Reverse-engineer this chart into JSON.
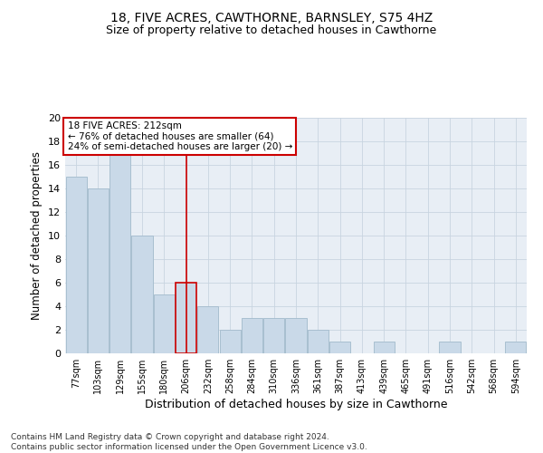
{
  "title": "18, FIVE ACRES, CAWTHORNE, BARNSLEY, S75 4HZ",
  "subtitle": "Size of property relative to detached houses in Cawthorne",
  "xlabel": "Distribution of detached houses by size in Cawthorne",
  "ylabel": "Number of detached properties",
  "footer_line1": "Contains HM Land Registry data © Crown copyright and database right 2024.",
  "footer_line2": "Contains public sector information licensed under the Open Government Licence v3.0.",
  "categories": [
    "77sqm",
    "103sqm",
    "129sqm",
    "155sqm",
    "180sqm",
    "206sqm",
    "232sqm",
    "258sqm",
    "284sqm",
    "310sqm",
    "336sqm",
    "361sqm",
    "387sqm",
    "413sqm",
    "439sqm",
    "465sqm",
    "491sqm",
    "516sqm",
    "542sqm",
    "568sqm",
    "594sqm"
  ],
  "values": [
    15,
    14,
    17,
    10,
    5,
    6,
    4,
    2,
    3,
    3,
    3,
    2,
    1,
    0,
    1,
    0,
    0,
    1,
    0,
    0,
    1
  ],
  "bar_color": "#c9d9e8",
  "bar_edge_color": "#a8bfd0",
  "highlight_bar_index": 5,
  "highlight_bar_edge_color": "#cc0000",
  "vline_color": "#cc0000",
  "ylim": [
    0,
    20
  ],
  "yticks": [
    0,
    2,
    4,
    6,
    8,
    10,
    12,
    14,
    16,
    18,
    20
  ],
  "annotation_line1": "18 FIVE ACRES: 212sqm",
  "annotation_line2": "← 76% of detached houses are smaller (64)",
  "annotation_line3": "24% of semi-detached houses are larger (20) →",
  "annotation_box_color": "#ffffff",
  "annotation_box_edge_color": "#cc0000",
  "grid_color": "#c8d4e0",
  "background_color": "#e8eef5",
  "title_fontsize": 10,
  "subtitle_fontsize": 9,
  "ylabel_fontsize": 8.5,
  "xlabel_fontsize": 9,
  "tick_fontsize": 8,
  "xtick_fontsize": 7
}
